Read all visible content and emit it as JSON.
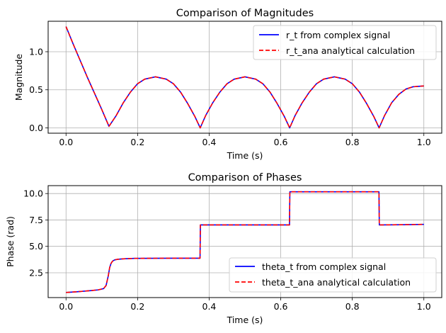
{
  "colors": {
    "grid": "#b0b0b0",
    "axis": "#000000",
    "legend_border": "#d0d0d0"
  },
  "chart_data": [
    {
      "type": "line",
      "title": "Comparison of Magnitudes",
      "xlabel": "Time (s)",
      "ylabel": "Magnitude",
      "xlim": [
        -0.05,
        1.05
      ],
      "ylim": [
        -0.07,
        1.4
      ],
      "xticks": [
        0.0,
        0.2,
        0.4,
        0.6,
        0.8,
        1.0
      ],
      "xtick_labels": [
        "0.0",
        "0.2",
        "0.4",
        "0.6",
        "0.8",
        "1.0"
      ],
      "yticks": [
        0.0,
        0.5,
        1.0
      ],
      "ytick_labels": [
        "0.0",
        "0.5",
        "1.0"
      ],
      "grid": true,
      "legend_position": "upper right",
      "series": [
        {
          "name": "r_t from complex signal",
          "color": "#0000ff",
          "dash": "solid",
          "x": [
            0,
            0.02,
            0.04,
            0.06,
            0.08,
            0.1,
            0.12,
            0.14,
            0.16,
            0.18,
            0.2,
            0.22,
            0.25,
            0.28,
            0.3,
            0.32,
            0.34,
            0.36,
            0.375,
            0.39,
            0.41,
            0.43,
            0.45,
            0.47,
            0.5,
            0.53,
            0.55,
            0.57,
            0.59,
            0.61,
            0.625,
            0.64,
            0.66,
            0.68,
            0.7,
            0.72,
            0.75,
            0.78,
            0.8,
            0.82,
            0.84,
            0.86,
            0.875,
            0.89,
            0.91,
            0.93,
            0.95,
            0.97,
            1.0
          ],
          "y": [
            1.33,
            1.1,
            0.88,
            0.66,
            0.45,
            0.24,
            0.02,
            0.16,
            0.33,
            0.47,
            0.58,
            0.64,
            0.67,
            0.64,
            0.58,
            0.47,
            0.32,
            0.15,
            0.0,
            0.16,
            0.33,
            0.47,
            0.58,
            0.64,
            0.67,
            0.64,
            0.58,
            0.47,
            0.32,
            0.15,
            0.0,
            0.16,
            0.33,
            0.47,
            0.58,
            0.64,
            0.67,
            0.64,
            0.58,
            0.47,
            0.32,
            0.15,
            0.0,
            0.16,
            0.33,
            0.44,
            0.51,
            0.54,
            0.55
          ]
        },
        {
          "name": "r_t_ana analytical calculation",
          "color": "#ff0000",
          "dash": "dashed",
          "x": [
            0,
            0.02,
            0.04,
            0.06,
            0.08,
            0.1,
            0.12,
            0.14,
            0.16,
            0.18,
            0.2,
            0.22,
            0.25,
            0.28,
            0.3,
            0.32,
            0.34,
            0.36,
            0.375,
            0.39,
            0.41,
            0.43,
            0.45,
            0.47,
            0.5,
            0.53,
            0.55,
            0.57,
            0.59,
            0.61,
            0.625,
            0.64,
            0.66,
            0.68,
            0.7,
            0.72,
            0.75,
            0.78,
            0.8,
            0.82,
            0.84,
            0.86,
            0.875,
            0.89,
            0.91,
            0.93,
            0.95,
            0.97,
            1.0
          ],
          "y": [
            1.33,
            1.1,
            0.88,
            0.66,
            0.45,
            0.24,
            0.02,
            0.16,
            0.33,
            0.47,
            0.58,
            0.64,
            0.67,
            0.64,
            0.58,
            0.47,
            0.32,
            0.15,
            0.0,
            0.16,
            0.33,
            0.47,
            0.58,
            0.64,
            0.67,
            0.64,
            0.58,
            0.47,
            0.32,
            0.15,
            0.0,
            0.16,
            0.33,
            0.47,
            0.58,
            0.64,
            0.67,
            0.64,
            0.58,
            0.47,
            0.32,
            0.15,
            0.0,
            0.16,
            0.33,
            0.44,
            0.51,
            0.54,
            0.55
          ]
        }
      ]
    },
    {
      "type": "line",
      "title": "Comparison of Phases",
      "xlabel": "Time (s)",
      "ylabel": "Phase (rad)",
      "xlim": [
        -0.05,
        1.05
      ],
      "ylim": [
        0.15,
        10.75
      ],
      "xticks": [
        0.0,
        0.2,
        0.4,
        0.6,
        0.8,
        1.0
      ],
      "xtick_labels": [
        "0.0",
        "0.2",
        "0.4",
        "0.6",
        "0.8",
        "1.0"
      ],
      "yticks": [
        2.5,
        5.0,
        7.5,
        10.0
      ],
      "ytick_labels": [
        "2.5",
        "5.0",
        "7.5",
        "10.0"
      ],
      "grid": true,
      "legend_position": "lower right",
      "series": [
        {
          "name": "theta_t from complex signal",
          "color": "#0000ff",
          "dash": "solid",
          "x": [
            0,
            0.03,
            0.06,
            0.09,
            0.105,
            0.112,
            0.118,
            0.122,
            0.126,
            0.13,
            0.136,
            0.145,
            0.16,
            0.19,
            0.24,
            0.3,
            0.35,
            0.3745,
            0.3755,
            0.45,
            0.55,
            0.6245,
            0.6255,
            0.7,
            0.8,
            0.8745,
            0.8755,
            0.94,
            1.0
          ],
          "y": [
            0.63,
            0.7,
            0.78,
            0.88,
            1.0,
            1.3,
            2.2,
            3.0,
            3.4,
            3.6,
            3.72,
            3.78,
            3.82,
            3.86,
            3.87,
            3.88,
            3.88,
            3.88,
            7.03,
            7.03,
            7.03,
            7.03,
            10.17,
            10.17,
            10.17,
            10.17,
            7.03,
            7.05,
            7.08
          ]
        },
        {
          "name": "theta_t_ana analytical calculation",
          "color": "#ff0000",
          "dash": "dashed",
          "x": [
            0,
            0.03,
            0.06,
            0.09,
            0.105,
            0.112,
            0.118,
            0.122,
            0.126,
            0.13,
            0.136,
            0.145,
            0.16,
            0.19,
            0.24,
            0.3,
            0.35,
            0.3745,
            0.3755,
            0.45,
            0.55,
            0.6245,
            0.6255,
            0.7,
            0.8,
            0.8745,
            0.8755,
            0.94,
            1.0
          ],
          "y": [
            0.63,
            0.7,
            0.78,
            0.88,
            1.0,
            1.3,
            2.2,
            3.0,
            3.4,
            3.6,
            3.72,
            3.78,
            3.82,
            3.86,
            3.87,
            3.88,
            3.88,
            3.88,
            7.03,
            7.03,
            7.03,
            7.03,
            10.17,
            10.17,
            10.17,
            10.17,
            7.03,
            7.05,
            7.08
          ]
        }
      ]
    }
  ]
}
